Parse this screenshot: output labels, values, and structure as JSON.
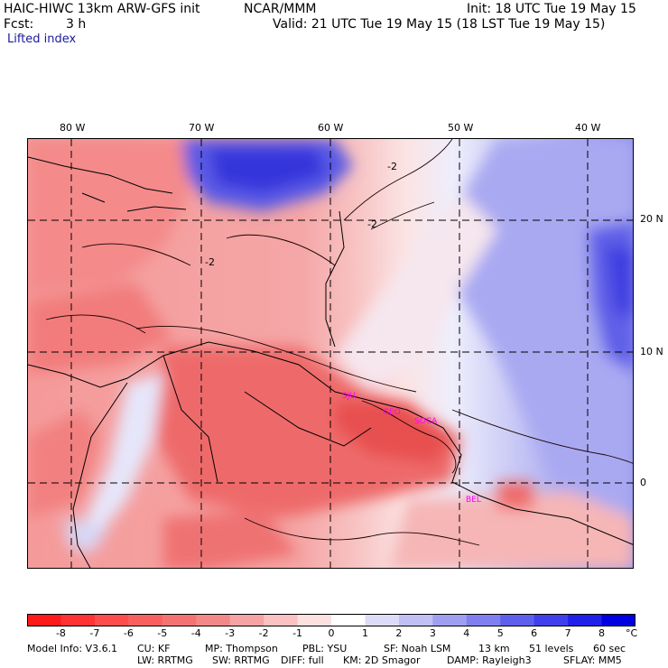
{
  "header": {
    "model_title": "HAIC-HIWC 13km ARW-GFS init",
    "org": "NCAR/MMM",
    "init": "Init: 18 UTC Tue 19 May 15",
    "fcst_label": "Fcst:",
    "fcst_value": "3 h",
    "valid": "Valid: 21 UTC Tue 19 May 15 (18 LST Tue 19 May 15)",
    "field": "Lifted index"
  },
  "map": {
    "lon_labels": [
      "80 W",
      "70 W",
      "60 W",
      "50 W",
      "40 W"
    ],
    "lat_labels": [
      "20 N",
      "10 N",
      "0"
    ],
    "contour_labels": [
      "-2",
      "-2",
      "-2"
    ],
    "stations": [
      "SJU",
      "GEO",
      "SOCA",
      "BEL"
    ],
    "station_color": "#ff00ff"
  },
  "colorbar": {
    "ticks": [
      "-8",
      "-7",
      "-6",
      "-5",
      "-4",
      "-3",
      "-2",
      "-1",
      "0",
      "1",
      "2",
      "3",
      "4",
      "5",
      "6",
      "7",
      "8"
    ],
    "unit": "°C",
    "colors": [
      "#ff1a1a",
      "#ff3333",
      "#ff4d4d",
      "#f86060",
      "#f47272",
      "#f28888",
      "#f5a3a3",
      "#fac2c2",
      "#fde0e0",
      "#ffffff",
      "#dcdcf8",
      "#c0c0f5",
      "#9f9ff2",
      "#7f7ff0",
      "#5f5fee",
      "#3f3fec",
      "#2020ea",
      "#0000e0"
    ]
  },
  "footer": {
    "line1": [
      "Model Info: V3.6.1",
      "CU: KF",
      "MP: Thompson",
      "PBL: YSU",
      "SF: Noah LSM",
      "13 km",
      "51 levels",
      "60 sec"
    ],
    "line2": [
      "LW: RRTMG",
      "SW: RRTMG",
      "DIFF: full",
      "KM: 2D Smagor",
      "DAMP: Rayleigh3",
      "SFLAY: MM5"
    ]
  }
}
